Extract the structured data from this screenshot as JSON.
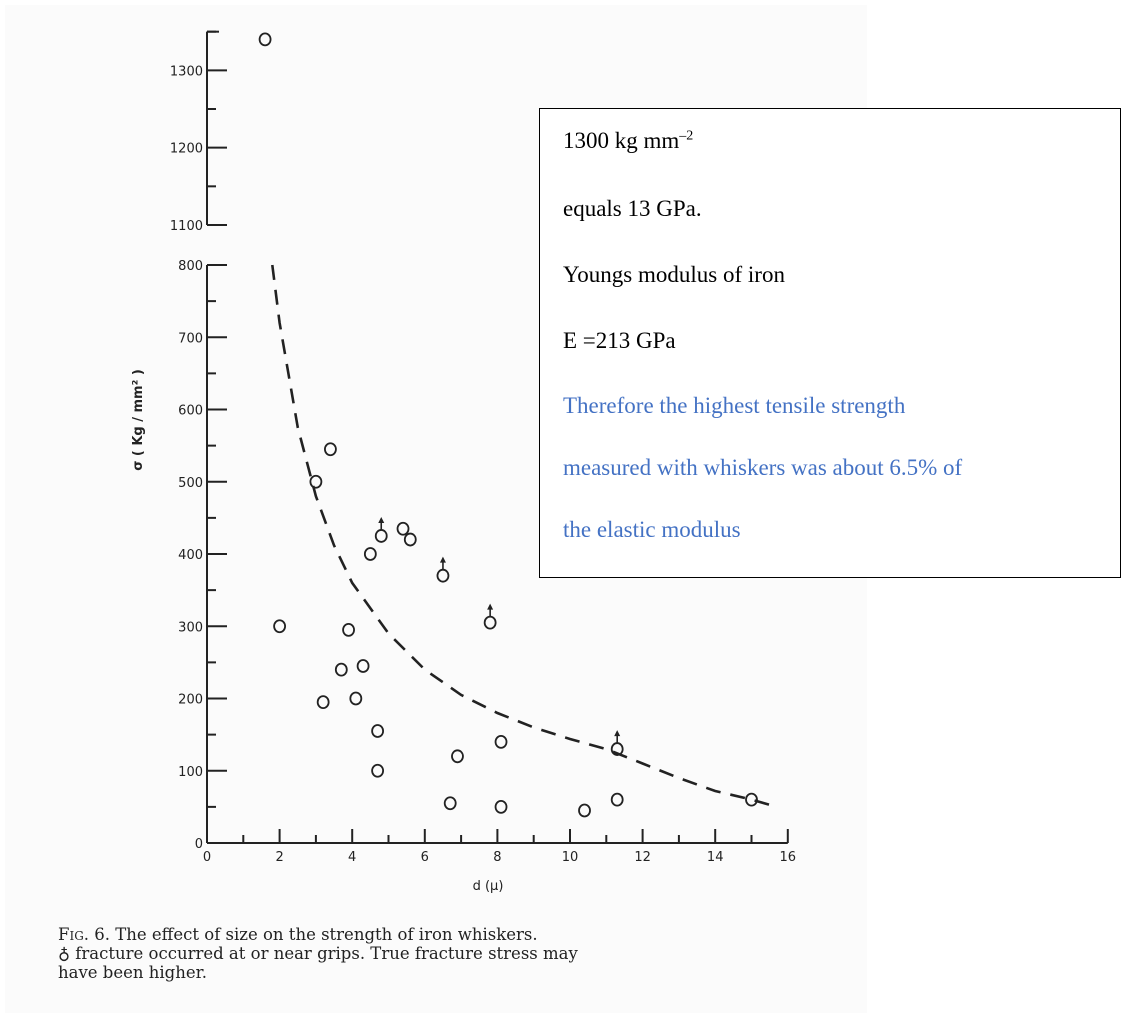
{
  "chart_data": {
    "type": "scatter",
    "xlabel": "d (μ)",
    "ylabel": "σ ( Kg / mm² )",
    "x_ticks": [
      "0",
      "2",
      "4",
      "6",
      "8",
      "10",
      "12",
      "14",
      "16"
    ],
    "y_ticks_lower": [
      "0",
      "100",
      "200",
      "300",
      "400",
      "500",
      "600",
      "700",
      "800"
    ],
    "y_ticks_upper": [
      "1100",
      "1200",
      "1300"
    ],
    "xlim": [
      0,
      16
    ],
    "ylim": [
      0,
      1350
    ],
    "axis_break": [
      800,
      1100
    ],
    "grid": false,
    "series": [
      {
        "marker": "open-circle",
        "points": [
          {
            "x": 1.6,
            "y": 1340
          },
          {
            "x": 2.0,
            "y": 300
          },
          {
            "x": 3.0,
            "y": 500
          },
          {
            "x": 3.4,
            "y": 545
          },
          {
            "x": 3.2,
            "y": 195
          },
          {
            "x": 3.7,
            "y": 240
          },
          {
            "x": 3.9,
            "y": 295
          },
          {
            "x": 4.1,
            "y": 200
          },
          {
            "x": 4.3,
            "y": 245
          },
          {
            "x": 4.5,
            "y": 400
          },
          {
            "x": 4.7,
            "y": 155
          },
          {
            "x": 4.7,
            "y": 100
          },
          {
            "x": 5.4,
            "y": 435
          },
          {
            "x": 5.6,
            "y": 420
          },
          {
            "x": 6.7,
            "y": 55
          },
          {
            "x": 6.9,
            "y": 120
          },
          {
            "x": 8.1,
            "y": 140
          },
          {
            "x": 8.1,
            "y": 50
          },
          {
            "x": 10.4,
            "y": 45
          },
          {
            "x": 11.3,
            "y": 60
          },
          {
            "x": 15.0,
            "y": 60
          }
        ]
      },
      {
        "marker": "open-circle-with-arrow",
        "points": [
          {
            "x": 4.8,
            "y": 425
          },
          {
            "x": 6.5,
            "y": 370
          },
          {
            "x": 7.8,
            "y": 305
          },
          {
            "x": 11.3,
            "y": 130
          }
        ]
      },
      {
        "style": "dashed-curve",
        "points": [
          {
            "x": 1.8,
            "y": 800
          },
          {
            "x": 2.0,
            "y": 720
          },
          {
            "x": 2.5,
            "y": 575
          },
          {
            "x": 3.0,
            "y": 480
          },
          {
            "x": 3.5,
            "y": 412
          },
          {
            "x": 4.0,
            "y": 360
          },
          {
            "x": 5.0,
            "y": 290
          },
          {
            "x": 6.0,
            "y": 240
          },
          {
            "x": 7.0,
            "y": 205
          },
          {
            "x": 8.0,
            "y": 180
          },
          {
            "x": 9.0,
            "y": 160
          },
          {
            "x": 10.0,
            "y": 144
          },
          {
            "x": 11.0,
            "y": 130
          },
          {
            "x": 12.0,
            "y": 110
          },
          {
            "x": 13.0,
            "y": 90
          },
          {
            "x": 14.0,
            "y": 72
          },
          {
            "x": 15.0,
            "y": 60
          },
          {
            "x": 15.7,
            "y": 50
          }
        ]
      }
    ]
  },
  "caption": {
    "fig_label": "Fig. 6.",
    "line1_rest": " The effect of size on the strength of iron whiskers.",
    "symbol": "♁",
    "line2_rest": " fracture occurred at or near grips. True fracture stress may",
    "line3": "have been higher."
  },
  "note": {
    "line1_main": "1300 kg mm",
    "line1_sup": "–2",
    "line2": "equals 13 GPa.",
    "line3": "Youngs modulus of iron",
    "line4": "E =213 GPa",
    "line5": "Therefore the highest tensile strength",
    "line6": "measured with whiskers was about 6.5% of",
    "line7": "the elastic modulus",
    "highlight_color": "#4472c4"
  }
}
